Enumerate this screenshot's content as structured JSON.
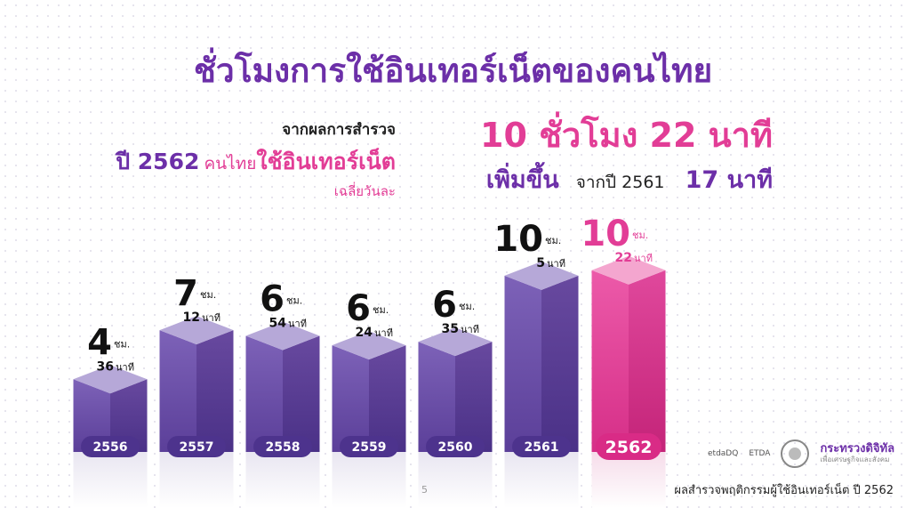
{
  "title": "ชั่วโมงการใช้อินเทอร์เน็ตของคนไทย",
  "survey": {
    "line1": "จากผลการสำรวจ",
    "year": "ปี 2562",
    "users": "คนไทย",
    "verb": "ใช้อินเทอร์เน็ต",
    "line3": "เฉลี่ยวันละ"
  },
  "highlight": {
    "total": "10 ชั่วโมง 22 นาที",
    "increase": "เพิ่มขึ้น",
    "from": "จากปี 2561",
    "delta": "17 นาที"
  },
  "chart_data": {
    "type": "bar",
    "categories": [
      "2556",
      "2557",
      "2558",
      "2559",
      "2560",
      "2561",
      "2562"
    ],
    "values": [
      4.6,
      7.2,
      6.9,
      6.4,
      6.583,
      10.083,
      10.367
    ],
    "hours": [
      "4",
      "7",
      "6",
      "6",
      "6",
      "10",
      "10"
    ],
    "minutes": [
      "36",
      "12",
      "54",
      "24",
      "35",
      "5",
      "22"
    ],
    "hour_unit": "ชม.",
    "minute_unit": "นาที",
    "xlabel": "",
    "ylabel": "",
    "grid": false,
    "colors": {
      "normal": "#6a4aa8",
      "highlight": "#e23d96"
    }
  },
  "logos": {
    "etda1": "etdaDQ",
    "etda2": "ETDA",
    "ministry": "กระทรวงดิจิทัล",
    "ministry_sub": "เพื่อเศรษฐกิจและสังคม"
  },
  "page_number": "5",
  "source": "ผลสำรวจพฤติกรรมผู้ใช้อินเทอร์เน็ต ปี 2562"
}
